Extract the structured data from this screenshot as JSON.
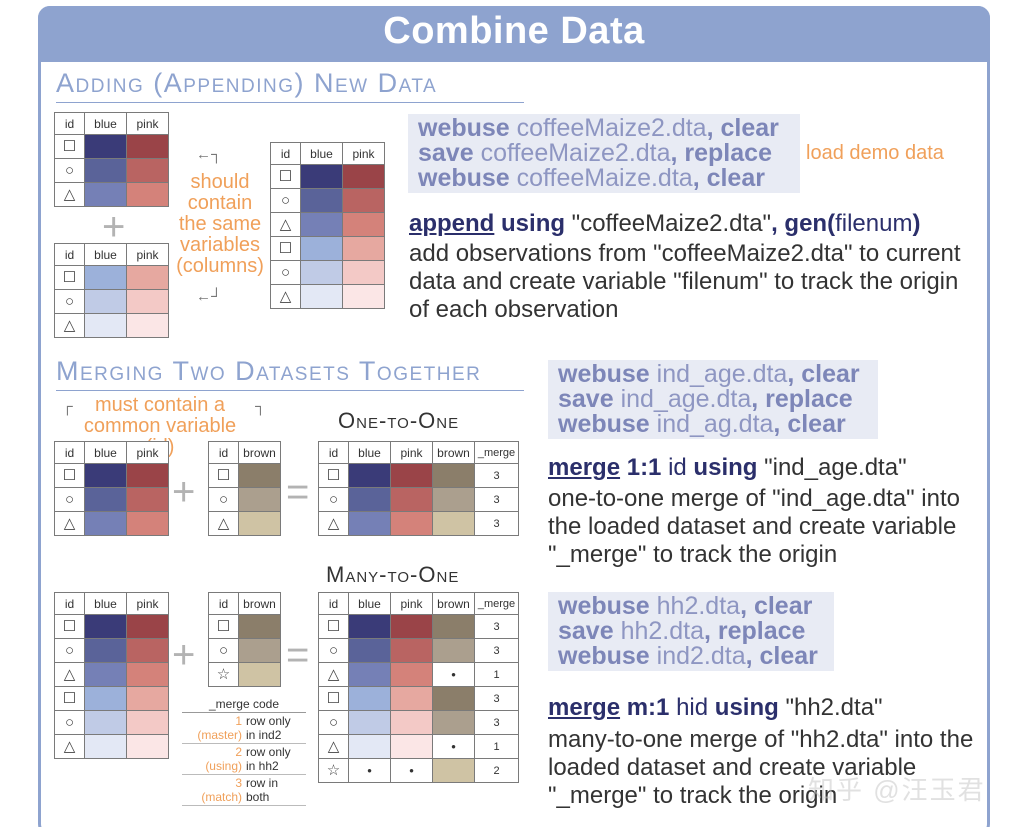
{
  "title": "Combine Data",
  "colors": {
    "accent": "#8ea3cf",
    "orange": "#f0a05a",
    "blue": [
      "#3a3b78",
      "#5a6399",
      "#7580b6",
      "#9cb1da",
      "#c0cbe6",
      "#e3e8f5"
    ],
    "pink": [
      "#9a4448",
      "#b96462",
      "#d4827a",
      "#e6a8a0",
      "#f3c9c6",
      "#fbe6e6"
    ],
    "brown": [
      "#8b7e6a",
      "#ab9f8e",
      "#cfc3a4"
    ]
  },
  "section1": {
    "title": "Adding (Appending) New Data",
    "note": [
      "should",
      "contain",
      "the same",
      "variables",
      "(columns)"
    ],
    "plus": "+",
    "table_headers": [
      "id",
      "blue",
      "pink"
    ],
    "code_lines": [
      {
        "kw1": "webuse",
        "text": " coffeeMaize2.dta",
        "kw2": ", clear"
      },
      {
        "kw1": "save",
        "text": " coffeeMaize2.dta",
        "kw2": ", replace"
      },
      {
        "kw1": "webuse",
        "text": " coffeeMaize.dta",
        "kw2": ", clear"
      }
    ],
    "load_label": "load demo data",
    "command": {
      "kw": "append",
      "kw2": " using",
      "str": " \"coffeeMaize2.dta\"",
      "opt": ", gen(",
      "var": "filenum",
      "close": ")"
    },
    "description": "add observations from \"coffeeMaize2.dta\" to current data and create variable \"filenum\" to track the origin of each observation"
  },
  "section2": {
    "title": "Merging Two Datasets Together",
    "note": "must contain a common variable (id)",
    "one_to_one": "One-to-One",
    "many_to_one": "Many-to-One",
    "plus": "+",
    "equals": "=",
    "headers_left": [
      "id",
      "blue",
      "pink"
    ],
    "headers_brown": [
      "id",
      "brown"
    ],
    "headers_result": [
      "id",
      "blue",
      "pink",
      "brown",
      "_merge"
    ],
    "merge_values_1": [
      "3",
      "3",
      "3"
    ],
    "merge_values_2": [
      "3",
      "3",
      "1",
      "3",
      "3",
      "1",
      "2"
    ],
    "missing": "•",
    "code1": [
      {
        "kw1": "webuse",
        "text": " ind_age.dta",
        "kw2": ", clear"
      },
      {
        "kw1": "save",
        "text": " ind_age.dta",
        "kw2": ", replace"
      },
      {
        "kw1": "webuse",
        "text": " ind_ag.dta",
        "kw2": ", clear"
      }
    ],
    "command1": {
      "kw": "merge",
      "kw2": " 1:1",
      "var": " id",
      "kw3": " using",
      "str": " \"ind_age.dta\""
    },
    "desc1": "one-to-one merge of \"ind_age.dta\" into the loaded dataset and create variable \"_merge\" to track the origin",
    "code2": [
      {
        "kw1": "webuse",
        "text": " hh2.dta",
        "kw2": ", clear"
      },
      {
        "kw1": "save",
        "text": " hh2.dta",
        "kw2": ", replace"
      },
      {
        "kw1": "webuse",
        "text": " ind2.dta",
        "kw2": ", clear"
      }
    ],
    "command2": {
      "kw": "merge",
      "kw2": " m:1",
      "var": " hid",
      "kw3": " using",
      "str": " \"hh2.dta\""
    },
    "desc2": "many-to-one merge of \"hh2.dta\" into the loaded dataset and create variable \"_merge\" to track the origin",
    "legend": {
      "head": "_merge code",
      "rows": [
        {
          "num": "1",
          "tag": "(master)",
          "l1": "row only",
          "l2": "in ind2"
        },
        {
          "num": "2",
          "tag": "(using)",
          "l1": "row only",
          "l2": "in hh2"
        },
        {
          "num": "3",
          "tag": "(match)",
          "l1": "row in",
          "l2": "both"
        }
      ]
    }
  },
  "watermark": "知乎 @汪玉君"
}
